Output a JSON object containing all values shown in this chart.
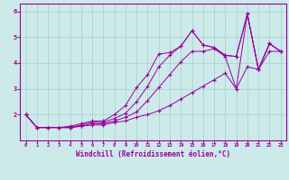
{
  "background_color": "#cceaea",
  "grid_color": "#aacccc",
  "line_color": "#990099",
  "xlabel": "Windchill (Refroidissement éolien,°C)",
  "xlim": [
    -0.5,
    23.5
  ],
  "ylim": [
    1.0,
    6.3
  ],
  "yticks": [
    2,
    3,
    4,
    5,
    6
  ],
  "xticks": [
    0,
    1,
    2,
    3,
    4,
    5,
    6,
    7,
    8,
    9,
    10,
    11,
    12,
    13,
    14,
    15,
    16,
    17,
    18,
    19,
    20,
    21,
    22,
    23
  ],
  "series": [
    [
      2.0,
      1.5,
      1.5,
      1.5,
      1.5,
      1.55,
      1.6,
      1.6,
      1.7,
      1.75,
      1.9,
      2.0,
      2.15,
      2.35,
      2.6,
      2.85,
      3.1,
      3.35,
      3.6,
      3.0,
      3.85,
      3.75,
      4.45,
      4.45
    ],
    [
      2.0,
      1.5,
      1.5,
      1.5,
      1.5,
      1.55,
      1.65,
      1.65,
      1.75,
      1.9,
      2.1,
      2.55,
      3.05,
      3.55,
      4.05,
      4.45,
      4.45,
      4.55,
      4.25,
      3.0,
      5.9,
      3.75,
      4.75,
      4.45
    ],
    [
      2.0,
      1.5,
      1.5,
      1.5,
      1.5,
      1.6,
      1.7,
      1.7,
      1.85,
      2.05,
      2.5,
      3.1,
      3.85,
      4.3,
      4.65,
      5.25,
      4.7,
      4.6,
      4.3,
      4.25,
      5.9,
      3.75,
      4.75,
      4.45
    ],
    [
      2.0,
      1.5,
      1.5,
      1.5,
      1.55,
      1.65,
      1.75,
      1.75,
      2.0,
      2.35,
      3.05,
      3.55,
      4.35,
      4.4,
      4.65,
      5.25,
      4.7,
      4.6,
      4.3,
      4.25,
      5.9,
      3.75,
      4.75,
      4.45
    ]
  ]
}
